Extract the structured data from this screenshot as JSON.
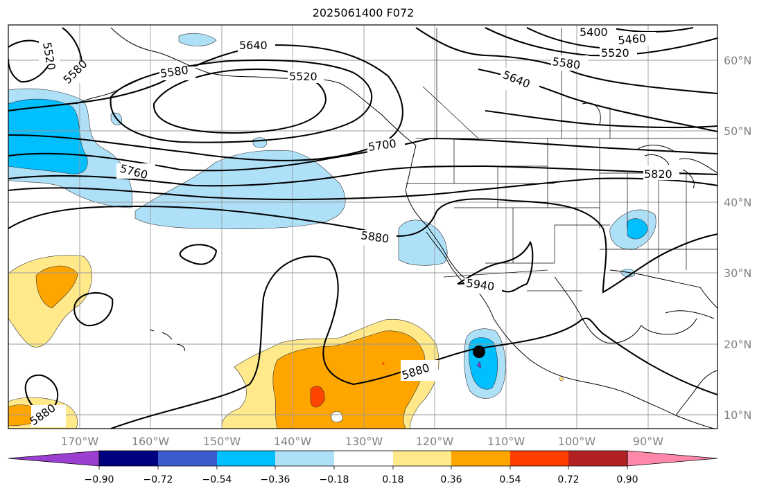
{
  "title": "2025061400 F072",
  "map": {
    "lon_labels": [
      "170°W",
      "160°W",
      "150°W",
      "140°W",
      "130°W",
      "120°W",
      "110°W",
      "100°W",
      "90°W"
    ],
    "lat_labels": [
      "60°N",
      "50°N",
      "40°N",
      "30°N",
      "20°N",
      "10°N"
    ],
    "contour_labels": [
      "5520",
      "5580",
      "5640",
      "5580",
      "5520",
      "5700",
      "5760",
      "5880",
      "5400",
      "5460",
      "5520",
      "5580",
      "5640",
      "5820",
      "5940",
      "5880",
      "5880"
    ],
    "marker": "black-dot"
  },
  "colorbar": {
    "ticks": [
      "−0.90",
      "−0.72",
      "−0.54",
      "−0.36",
      "−0.18",
      "0.18",
      "0.36",
      "0.54",
      "0.72",
      "0.90"
    ],
    "colors": [
      "#9b3fd1",
      "#000080",
      "#3a5bcc",
      "#00bfff",
      "#aee0f8",
      "#ffffff",
      "#ffe98a",
      "#ffa500",
      "#ff3d00",
      "#b22222",
      "#ff88aa"
    ]
  },
  "fill_colors": {
    "light_blue": "#aee0f8",
    "blue": "#00bfff",
    "yellow": "#ffe98a",
    "orange": "#ffa500",
    "red": "#ff4500"
  }
}
